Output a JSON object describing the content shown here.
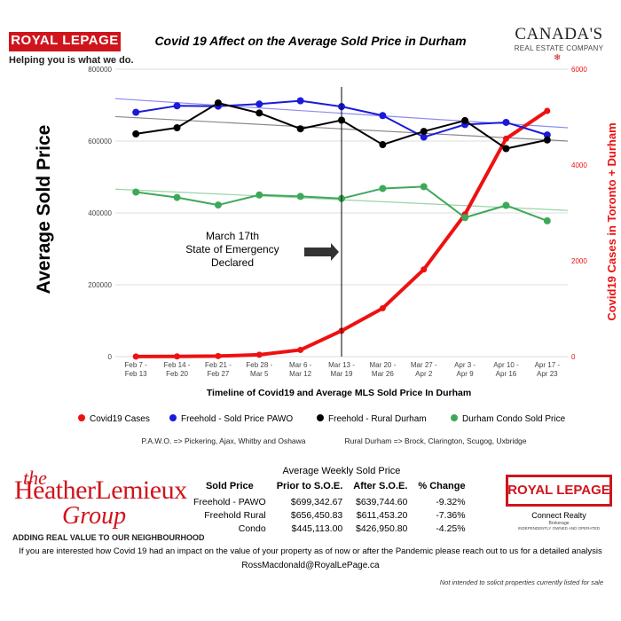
{
  "header": {
    "brand": "ROYAL LEPAGE",
    "tagline": "Helping you is what we do.",
    "title": "Covid 19 Affect on the Average Sold Price in Durham",
    "partner_name": "CANADA'S",
    "partner_sub": "REAL ESTATE COMPANY"
  },
  "chart_data": {
    "type": "line",
    "categories": [
      "Feb 7 - Feb 13",
      "Feb 14 - Feb 20",
      "Feb 21 - Feb 27",
      "Feb 28 - Mar 5",
      "Mar 6 - Mar 12",
      "Mar 13 - Mar 19",
      "Mar 20 - Mar 26",
      "Mar 27 - Apr 2",
      "Apr 3 - Apr 9",
      "Apr 10 - Apr 16",
      "Apr 17 - Apr 23"
    ],
    "category_lines": [
      [
        "Feb 7 -",
        "Feb 13"
      ],
      [
        "Feb 14 -",
        "Feb 20"
      ],
      [
        "Feb 21 -",
        "Feb 27"
      ],
      [
        "Feb 28 -",
        "Mar 5"
      ],
      [
        "Mar 6 -",
        "Mar 12"
      ],
      [
        "Mar 13 -",
        "Mar 19"
      ],
      [
        "Mar 20 -",
        "Mar 26"
      ],
      [
        "Mar 27 -",
        "Apr 2"
      ],
      [
        "Apr 3 -",
        "Apr 9"
      ],
      [
        "Apr 10 -",
        "Apr 16"
      ],
      [
        "Apr 17 -",
        "Apr 23"
      ]
    ],
    "ylabel": "Average Sold Price",
    "y2label": "Covid19 Cases in Toronto + Durham",
    "xlabel": "Timeline of Covid19 and Average MLS Sold Price In Durham",
    "ylim": [
      0,
      800000
    ],
    "y_ticks": [
      0,
      200000,
      400000,
      600000,
      800000
    ],
    "y_tick_labels": [
      "0",
      "200000",
      "400000",
      "600000",
      "800000"
    ],
    "y2lim": [
      0,
      6000
    ],
    "y2_ticks": [
      0,
      2000,
      4000,
      6000
    ],
    "y2_tick_labels": [
      "0",
      "2000",
      "4000",
      "6000"
    ],
    "series": [
      {
        "name": "Covid19 Cases",
        "axis": "right",
        "color": "#ee1111",
        "values": [
          2,
          5,
          12,
          40,
          140,
          540,
          1010,
          1820,
          2970,
          4550,
          5130
        ]
      },
      {
        "name": "Freehold - Sold Price PAWO",
        "axis": "left",
        "color": "#1a1adb",
        "values": [
          680000,
          698000,
          697000,
          703000,
          712000,
          696000,
          671000,
          611000,
          646000,
          652000,
          617000
        ]
      },
      {
        "name": "Freehold - Rural Durham",
        "axis": "left",
        "color": "#000000",
        "values": [
          620000,
          637000,
          706000,
          678000,
          634000,
          658000,
          590000,
          627000,
          657000,
          579000,
          603000
        ]
      },
      {
        "name": "Durham Condo Sold Price",
        "axis": "left",
        "color": "#3ea85a",
        "values": [
          458000,
          443000,
          422000,
          450000,
          446000,
          440000,
          468000,
          473000,
          387000,
          421000,
          378000
        ]
      }
    ],
    "trendlines": [
      {
        "series": "Freehold - Sold Price PAWO",
        "color": "#8c8cf0",
        "from": 718000,
        "to": 637000
      },
      {
        "series": "Freehold - Rural Durham",
        "color": "#888888",
        "from": 668000,
        "to": 600000
      },
      {
        "series": "Durham Condo Sold Price",
        "color": "#9ad4a6",
        "from": 466000,
        "to": 407000
      }
    ],
    "annotation": {
      "lines": [
        "March 17th",
        "State of Emergency",
        "Declared"
      ],
      "at_category": "Mar 13 - Mar 19"
    },
    "legend_position": "bottom",
    "grid": true
  },
  "notes": {
    "pawo": "P.A.W.O. => Pickering, Ajax, Whitby and Oshawa",
    "rural": "Rural Durham => Brock, Clarington, Scugog, Uxbridge"
  },
  "group": {
    "the": "the",
    "name": "HeatherLemieux",
    "group": "Group",
    "tagline": "ADDING REAL VALUE TO OUR NEIGHBOURHOOD"
  },
  "table": {
    "title": "Average Weekly Sold Price",
    "headers": [
      "Sold Price",
      "Prior to S.O.E.",
      "After S.O.E.",
      "% Change"
    ],
    "rows": [
      [
        "Freehold - PAWO",
        "$699,342.67",
        "$639,744.60",
        "-9.32%"
      ],
      [
        "Freehold Rural",
        "$656,450.83",
        "$611,453.20",
        "-7.36%"
      ],
      [
        "Condo",
        "$445,113.00",
        "$426,950.80",
        "-4.25%"
      ]
    ]
  },
  "brokerage": {
    "brand": "ROYAL LEPAGE",
    "office": "Connect Realty",
    "type": "Brokerage",
    "independent": "INDEPENDENTLY OWNED AND OPERATED"
  },
  "footer": {
    "message": "If you are interested how Covid 19 had an impact on the value of your property as of now or after the Pandemic please reach out to us for a detailed analysis",
    "email": "RossMacdonald@RoyalLePage.ca",
    "disclaimer": "Not intended to solicit properties currently listed for sale"
  }
}
